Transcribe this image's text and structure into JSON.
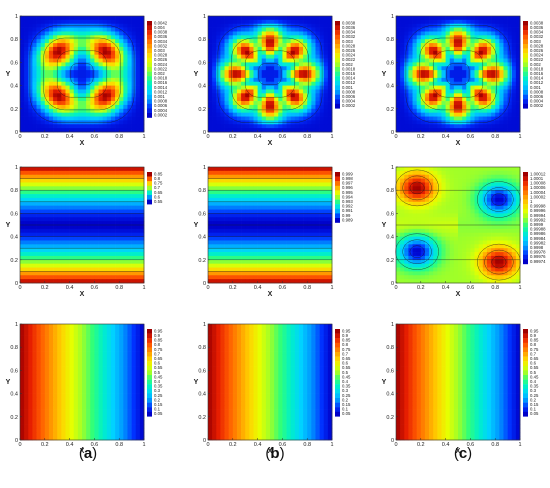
{
  "figure": {
    "column_labels": [
      {
        "open": "(",
        "letter": "a",
        "close": ")"
      },
      {
        "open": "(",
        "letter": "b",
        "close": ")"
      },
      {
        "open": "(",
        "letter": "c",
        "close": ")"
      }
    ],
    "x_axis_label": "X",
    "y_axis_label": "Y",
    "x_ticks": [
      "0",
      "0.2",
      "0.4",
      "0.6",
      "0.8",
      "1"
    ],
    "y_ticks": [
      "0",
      "0.2",
      "0.4",
      "0.6",
      "0.8",
      "1"
    ],
    "colormap": [
      "#0000c8",
      "#0032ff",
      "#0096ff",
      "#00d2ff",
      "#00f0c8",
      "#32ff78",
      "#a0ff28",
      "#e6ff00",
      "#ffd200",
      "#ff9600",
      "#ff5a00",
      "#e61e00",
      "#a00000"
    ],
    "streamline_color": "#1a1a1a"
  },
  "chart_data": [
    {
      "type": "heatmap",
      "row": 1,
      "column": "a",
      "field": "ring",
      "peaks": 4,
      "phase": 0,
      "legend": [
        "0.0042",
        "0.004",
        "0.0038",
        "0.0036",
        "0.0034",
        "0.0032",
        "0.003",
        "0.0028",
        "0.0026",
        "0.0024",
        "0.0022",
        "0.002",
        "0.0018",
        "0.0016",
        "0.0014",
        "0.0012",
        "0.001",
        "0.0008",
        "0.0006",
        "0.0004",
        "0.0002"
      ]
    },
    {
      "type": "heatmap",
      "row": 1,
      "column": "b",
      "field": "ring",
      "peaks": 8,
      "phase": 0,
      "legend": [
        "0.0038",
        "0.0036",
        "0.0034",
        "0.0032",
        "0.003",
        "0.0028",
        "0.0026",
        "0.0024",
        "0.0022",
        "0.002",
        "0.0018",
        "0.0016",
        "0.0014",
        "0.0012",
        "0.001",
        "0.0008",
        "0.0006",
        "0.0004",
        "0.0002"
      ]
    },
    {
      "type": "heatmap",
      "row": 1,
      "column": "c",
      "field": "ring",
      "peaks": 8,
      "phase": 0,
      "legend": [
        "0.0038",
        "0.0036",
        "0.0034",
        "0.0032",
        "0.003",
        "0.0028",
        "0.0026",
        "0.0024",
        "0.0022",
        "0.002",
        "0.0018",
        "0.0016",
        "0.0014",
        "0.0012",
        "0.001",
        "0.0008",
        "0.0006",
        "0.0004",
        "0.0002"
      ]
    },
    {
      "type": "heatmap",
      "row": 2,
      "column": "a",
      "field": "horizontal-bands",
      "band_center": 0.5,
      "legend": [
        "0.85",
        "0.8",
        "0.75",
        "0.7",
        "0.65",
        "0.6",
        "0.55"
      ]
    },
    {
      "type": "heatmap",
      "row": 2,
      "column": "b",
      "field": "horizontal-bands",
      "band_center": 0.5,
      "legend": [
        "0.999",
        "0.998",
        "0.997",
        "0.996",
        "0.995",
        "0.994",
        "0.993",
        "0.992",
        "0.991",
        "0.99",
        "0.989"
      ]
    },
    {
      "type": "heatmap",
      "row": 2,
      "column": "c",
      "field": "cells",
      "cells": [
        {
          "x": 0.17,
          "y": 0.82,
          "sign": 1
        },
        {
          "x": 0.83,
          "y": 0.72,
          "sign": -1
        },
        {
          "x": 0.17,
          "y": 0.27,
          "sign": -1
        },
        {
          "x": 0.83,
          "y": 0.18,
          "sign": 1
        }
      ],
      "legend": [
        "1.00012",
        "1.0001",
        "1.00008",
        "1.00006",
        "1.00004",
        "1.00002",
        "1",
        "0.99998",
        "0.99996",
        "0.99994",
        "0.99992",
        "0.9999",
        "0.99988",
        "0.99986",
        "0.99984",
        "0.99982",
        "0.9998",
        "0.99978",
        "0.99976",
        "0.99974"
      ]
    },
    {
      "type": "heatmap",
      "row": 3,
      "column": "a",
      "field": "linear-x",
      "legend": [
        "0.95",
        "0.9",
        "0.85",
        "0.8",
        "0.75",
        "0.7",
        "0.65",
        "0.6",
        "0.55",
        "0.5",
        "0.45",
        "0.4",
        "0.35",
        "0.3",
        "0.25",
        "0.2",
        "0.15",
        "0.1",
        "0.05"
      ]
    },
    {
      "type": "heatmap",
      "row": 3,
      "column": "b",
      "field": "linear-x",
      "legend": [
        "0.95",
        "0.9",
        "0.85",
        "0.8",
        "0.75",
        "0.7",
        "0.65",
        "0.6",
        "0.55",
        "0.5",
        "0.45",
        "0.4",
        "0.35",
        "0.3",
        "0.25",
        "0.2",
        "0.15",
        "0.1",
        "0.05"
      ]
    },
    {
      "type": "heatmap",
      "row": 3,
      "column": "c",
      "field": "linear-x",
      "legend": [
        "0.95",
        "0.9",
        "0.85",
        "0.8",
        "0.75",
        "0.7",
        "0.65",
        "0.6",
        "0.55",
        "0.5",
        "0.45",
        "0.4",
        "0.35",
        "0.3",
        "0.25",
        "0.2",
        "0.15",
        "0.1",
        "0.05"
      ]
    }
  ]
}
